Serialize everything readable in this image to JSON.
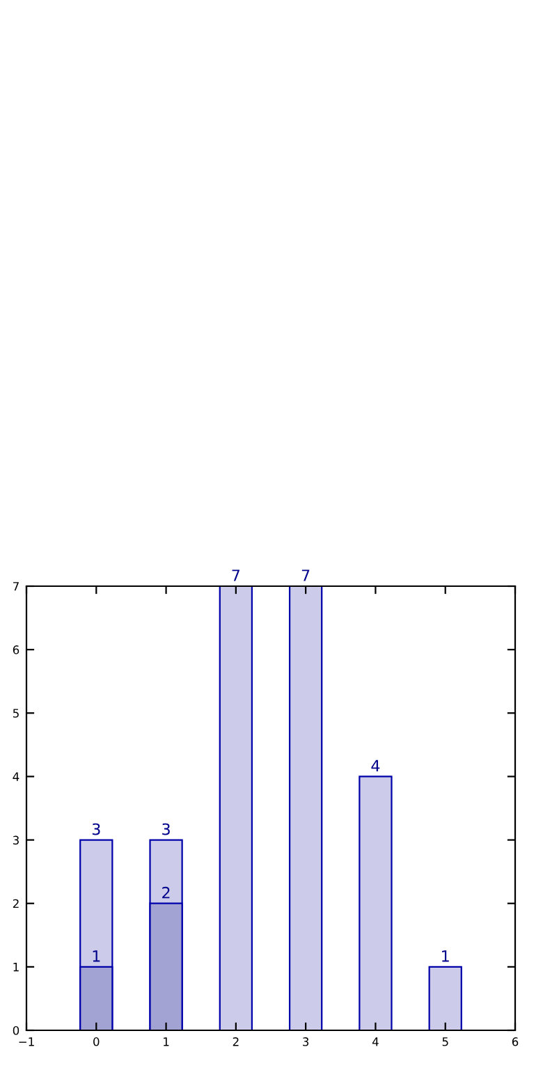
{
  "chart_data": {
    "type": "bar",
    "x": [
      0,
      1,
      2,
      3,
      4,
      5
    ],
    "series": [
      {
        "color": "#ccccea",
        "values": [
          3,
          3,
          7,
          7,
          4,
          1
        ]
      },
      {
        "color": "#a3a3d3",
        "values": [
          1,
          2,
          null,
          null,
          null,
          null
        ]
      }
    ],
    "data_labels": true,
    "xlim": [
      -1,
      6
    ],
    "xticks": [
      {
        "value": -1,
        "label": "−1"
      },
      0,
      1,
      2,
      3,
      4,
      5,
      6
    ],
    "ylim": [
      0,
      7
    ],
    "yticks": [
      0,
      1,
      2,
      3,
      4,
      5,
      6,
      7
    ]
  }
}
